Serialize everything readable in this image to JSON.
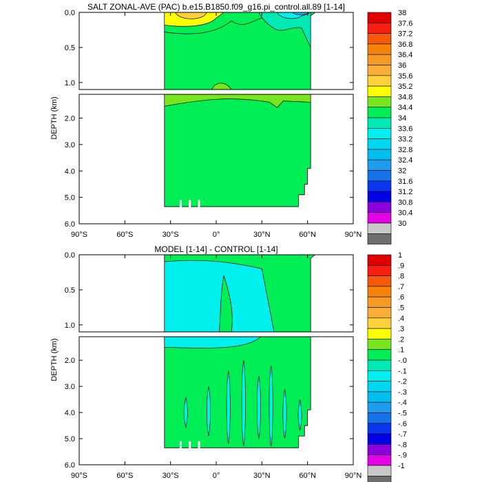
{
  "chart_data": [
    {
      "type": "contour",
      "title": "SALT ZONAL-AVE (PAC) b.e15.B1850.f09_g16.pi_control.all.89 [1-14]",
      "ylabel": "DEPTH (km)",
      "xlabel": "",
      "xlim": [
        -90,
        90
      ],
      "xticks": [
        -90,
        -60,
        -30,
        0,
        30,
        60,
        90
      ],
      "xtick_labels": [
        "90°S",
        "60°S",
        "30°S",
        "0°",
        "30°N",
        "60°N",
        "90°N"
      ],
      "ylim_upper": [
        0,
        1.1
      ],
      "yticks_upper": [
        0,
        0.5,
        1.0
      ],
      "ytick_labels_upper": [
        "0.0",
        "0.5",
        "1.0"
      ],
      "ylim_lower": [
        1.1,
        6
      ],
      "yticks_lower": [
        2,
        3,
        4,
        5,
        6
      ],
      "ytick_labels_lower": [
        "2.0",
        "3.0",
        "4.0",
        "5.0",
        "6.0"
      ],
      "domain_lat": [
        -34,
        62
      ],
      "colorbar_levels": [
        "38",
        "37.6",
        "37.2",
        "36.8",
        "36.4",
        "36",
        "35.6",
        "35.2",
        "34.8",
        "34.4",
        "34",
        "33.6",
        "33.2",
        "32.8",
        "32.4",
        "32",
        "31.6",
        "31.2",
        "30.8",
        "30.4",
        "30"
      ],
      "colorbar_colors": [
        "#c80000",
        "#e00000",
        "#f52010",
        "#f55a0a",
        "#f5820a",
        "#f59a28",
        "#f9ae35",
        "#ffd23c",
        "#ffff00",
        "#78e61e",
        "#00ee55",
        "#00e8b4",
        "#00f0ee",
        "#00d6ee",
        "#00beee",
        "#1e9cf0",
        "#1473e6",
        "#0a36f0",
        "#0000e6",
        "#8c00dc",
        "#e600e6",
        "#c8c8c8",
        "#6e6e6e"
      ]
    },
    {
      "type": "contour",
      "title": "MODEL [1-14] - CONTROL [1-14]",
      "ylabel": "DEPTH (km)",
      "xlabel": "",
      "xlim": [
        -90,
        90
      ],
      "xticks": [
        -90,
        -60,
        -30,
        0,
        30,
        60,
        90
      ],
      "xtick_labels": [
        "90°S",
        "60°S",
        "30°S",
        "0°",
        "30°N",
        "60°N",
        "90°N"
      ],
      "ylim_upper": [
        0,
        1.1
      ],
      "yticks_upper": [
        0,
        0.5,
        1.0
      ],
      "ytick_labels_upper": [
        "0.0",
        "0.5",
        "1.0"
      ],
      "ylim_lower": [
        1.1,
        6
      ],
      "yticks_lower": [
        2,
        3,
        4,
        5,
        6
      ],
      "ytick_labels_lower": [
        "2.0",
        "3.0",
        "4.0",
        "5.0",
        "6.0"
      ],
      "domain_lat": [
        -34,
        62
      ],
      "colorbar_levels": [
        "1",
        ".9",
        ".8",
        ".7",
        ".6",
        ".5",
        ".4",
        ".3",
        ".2",
        ".1",
        "-.0",
        "-.1",
        "-.2",
        "-.3",
        "-.4",
        "-.5",
        "-.6",
        "-.7",
        "-.8",
        "-.9",
        "-1"
      ],
      "colorbar_colors": [
        "#c80000",
        "#e00000",
        "#f52010",
        "#f55a0a",
        "#f5820a",
        "#f59a28",
        "#f9ae35",
        "#ffd23c",
        "#ffff00",
        "#78e61e",
        "#00ee55",
        "#00e8b4",
        "#00f0ee",
        "#00d6ee",
        "#00beee",
        "#1e9cf0",
        "#1473e6",
        "#0a36f0",
        "#0000e6",
        "#8c00dc",
        "#e600e6",
        "#c8c8c8",
        "#6e6e6e"
      ]
    }
  ]
}
